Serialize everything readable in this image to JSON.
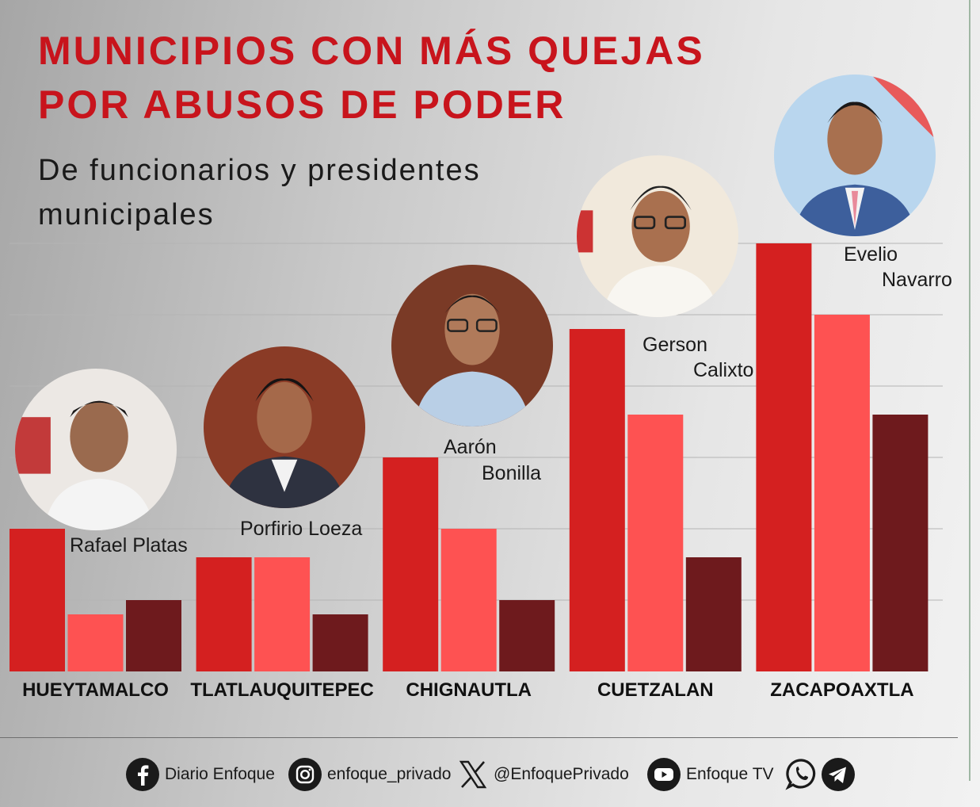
{
  "header": {
    "title_line1": "MUNICIPIOS CON MÁS QUEJAS",
    "title_line2": "POR ABUSOS DE PODER",
    "subtitle_line1": "De funcionarios y presidentes",
    "subtitle_line2": "municipales"
  },
  "colors": {
    "title": "#c8141c",
    "series": [
      "#d42020",
      "#fe5252",
      "#6e1a1d"
    ]
  },
  "chart_data": {
    "type": "bar",
    "title": "MUNICIPIOS CON MÁS QUEJAS POR ABUSOS DE PODER",
    "subtitle": "De funcionarios y presidentes municipales",
    "categories": [
      "HUEYTAMALCO",
      "TLATLAUQUITEPEC",
      "CHIGNAUTLA",
      "CUETZALAN",
      "ZACAPOAXTLA"
    ],
    "series": [
      {
        "values": [
          10,
          8,
          15,
          24,
          30
        ]
      },
      {
        "values": [
          4,
          8,
          10,
          18,
          25
        ]
      },
      {
        "values": [
          5,
          4,
          5,
          8,
          18
        ]
      }
    ],
    "ylim": [
      0,
      30
    ],
    "grid": true,
    "legend": "none"
  },
  "people": [
    {
      "first": "Rafael Platas",
      "last": ""
    },
    {
      "first": "Porfirio Loeza",
      "last": ""
    },
    {
      "first": "Aarón",
      "last": "Bonilla"
    },
    {
      "first": "Gerson",
      "last": "Calixto"
    },
    {
      "first": "Evelio",
      "last": "Navarro"
    }
  ],
  "footer": {
    "facebook": "Diario Enfoque",
    "instagram": "enfoque_privado",
    "x": "@EnfoquePrivado",
    "youtube": "Enfoque TV",
    "icons": [
      "facebook-icon",
      "instagram-icon",
      "x-icon",
      "youtube-icon",
      "whatsapp-icon",
      "telegram-icon"
    ]
  }
}
